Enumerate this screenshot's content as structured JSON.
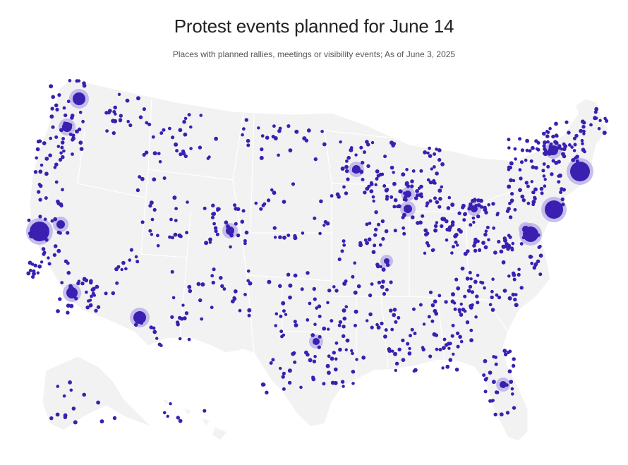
{
  "title": "Protest events planned for June 14",
  "subtitle": "Places with planned rallies, meetings or visibility events; As of June 3, 2025",
  "colors": {
    "dot": "#3a1fb0",
    "halo": "#b4a9e8",
    "land": "#f2f2f2",
    "background": "#ffffff"
  },
  "legend": "none"
}
